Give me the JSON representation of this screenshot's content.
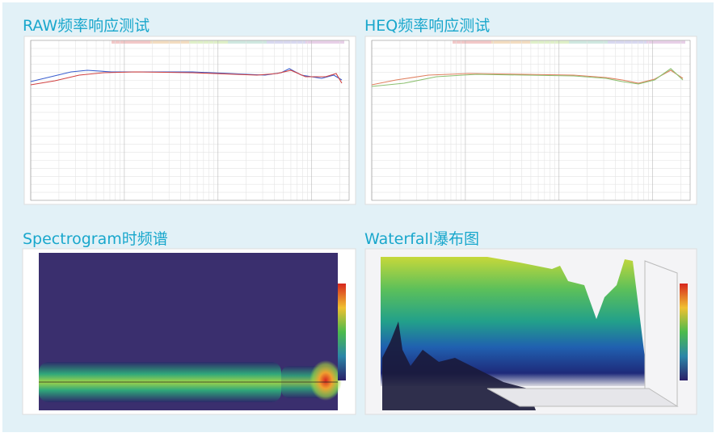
{
  "panels": [
    {
      "title": "RAW频率响应测试"
    },
    {
      "title": "HEQ频率响应测试"
    },
    {
      "title": "Spectrogram时频谱"
    },
    {
      "title": "Waterfall瀑布图"
    }
  ]
}
